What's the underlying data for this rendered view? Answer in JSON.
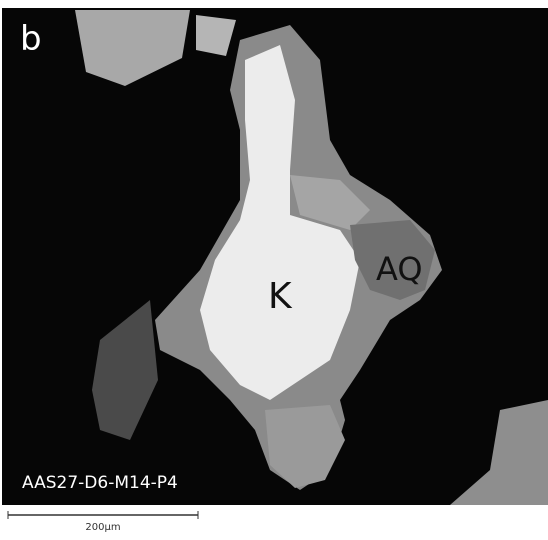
{
  "panel_label": "b",
  "labels": [
    "K",
    "AQ"
  ],
  "sample_id": "AAS27-D6-M14-P4",
  "scale_bar": "200µm"
}
